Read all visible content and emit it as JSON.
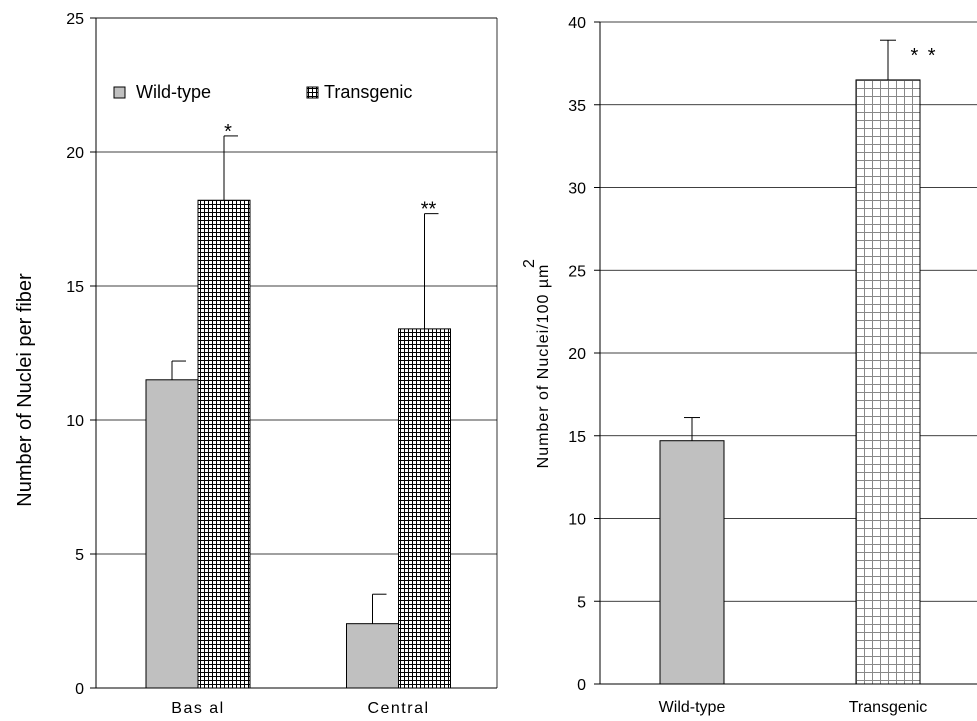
{
  "chart_data": [
    {
      "type": "bar",
      "ylabel": "Number of Nuclei per fiber",
      "xlabel": "",
      "ylim": [
        0,
        25
      ],
      "yticks": [
        0,
        5,
        10,
        15,
        20,
        25
      ],
      "grid": true,
      "legend_position": "top",
      "categories": [
        "Bas al",
        "Central"
      ],
      "series": [
        {
          "name": "Wild-type",
          "values": [
            11.5,
            2.4
          ],
          "errors": [
            0.7,
            1.1
          ],
          "color": "#c0c0c0",
          "pattern": "solid"
        },
        {
          "name": "Transgenic",
          "values": [
            18.2,
            13.4
          ],
          "errors": [
            2.4,
            4.3
          ],
          "color": "#ffffff",
          "pattern": "grid"
        }
      ],
      "annotations": [
        {
          "text": "*",
          "series": 1,
          "category": 0
        },
        {
          "text": "**",
          "series": 1,
          "category": 1
        }
      ]
    },
    {
      "type": "bar",
      "ylabel": "Number of Nuclei/100 µm",
      "ylabel_superscript": "2",
      "xlabel": "",
      "ylim": [
        0,
        40
      ],
      "yticks": [
        0,
        5,
        10,
        15,
        20,
        25,
        30,
        35,
        40
      ],
      "grid": true,
      "categories": [
        "Wild-type",
        "Transgenic"
      ],
      "values": [
        14.7,
        36.5
      ],
      "errors": [
        1.4,
        2.4
      ],
      "colors": [
        "#c0c0c0",
        "#ffffff"
      ],
      "patterns": [
        "solid",
        "grid"
      ],
      "annotations": [
        {
          "text": "* *",
          "category": 1
        }
      ]
    }
  ]
}
